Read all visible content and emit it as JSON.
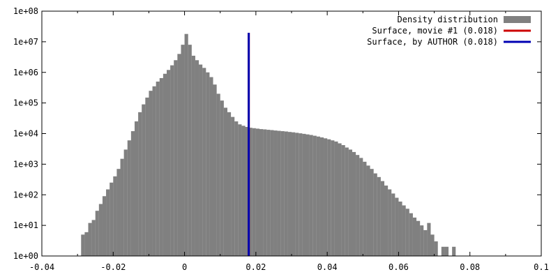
{
  "chart_data": {
    "type": "bar",
    "title": "",
    "xlabel": "",
    "ylabel": "",
    "xlim": [
      -0.04,
      0.1
    ],
    "ylim": [
      1,
      100000000
    ],
    "y_scale": "log",
    "grid": false,
    "legend_position": "top-right",
    "x_ticks": [
      {
        "value": -0.04,
        "label": "-0.04"
      },
      {
        "value": -0.02,
        "label": "-0.02"
      },
      {
        "value": 0,
        "label": "0"
      },
      {
        "value": 0.02,
        "label": "0.02"
      },
      {
        "value": 0.04,
        "label": "0.04"
      },
      {
        "value": 0.06,
        "label": "0.06"
      },
      {
        "value": 0.08,
        "label": "0.08"
      },
      {
        "value": 0.1,
        "label": "0.1"
      }
    ],
    "y_ticks": [
      {
        "value": 1,
        "label": "1e+00"
      },
      {
        "value": 10,
        "label": "1e+01"
      },
      {
        "value": 100,
        "label": "1e+02"
      },
      {
        "value": 1000,
        "label": "1e+03"
      },
      {
        "value": 10000,
        "label": "1e+04"
      },
      {
        "value": 100000,
        "label": "1e+05"
      },
      {
        "value": 1000000,
        "label": "1e+06"
      },
      {
        "value": 10000000,
        "label": "1e+07"
      },
      {
        "value": 100000000,
        "label": "1e+08"
      }
    ],
    "series": [
      {
        "name": "Density distribution",
        "kind": "histogram",
        "color": "#808080",
        "bin_start": -0.029,
        "bin_width": 0.001,
        "counts": [
          5,
          6,
          12,
          15,
          30,
          50,
          90,
          150,
          250,
          400,
          700,
          1500,
          3000,
          6000,
          12000,
          25000,
          50000,
          90000,
          150000,
          250000,
          350000,
          500000,
          650000,
          900000,
          1200000,
          1700000,
          2500000,
          4000000,
          8000000,
          18000000,
          8000000,
          3500000,
          2500000,
          1800000,
          1400000,
          1000000,
          700000,
          400000,
          200000,
          120000,
          70000,
          50000,
          35000,
          25000,
          20000,
          18000,
          16500,
          15500,
          15000,
          14500,
          14000,
          13700,
          13300,
          13000,
          12600,
          12300,
          12000,
          11700,
          11300,
          11000,
          10600,
          10200,
          9800,
          9400,
          9000,
          8500,
          8000,
          7500,
          7000,
          6500,
          6000,
          5500,
          4800,
          4200,
          3500,
          3000,
          2500,
          2000,
          1600,
          1200,
          900,
          700,
          500,
          380,
          280,
          200,
          150,
          110,
          80,
          60,
          45,
          35,
          25,
          18,
          14,
          10,
          7,
          12,
          5,
          3,
          0,
          2,
          2,
          0,
          2
        ]
      },
      {
        "name": "Surface, movie #1 (0.018)",
        "kind": "vline",
        "color": "#cc0000",
        "x": 0.018
      },
      {
        "name": "Surface, by AUTHOR (0.018)",
        "kind": "vline",
        "color": "#0000b3",
        "x": 0.018
      }
    ]
  }
}
